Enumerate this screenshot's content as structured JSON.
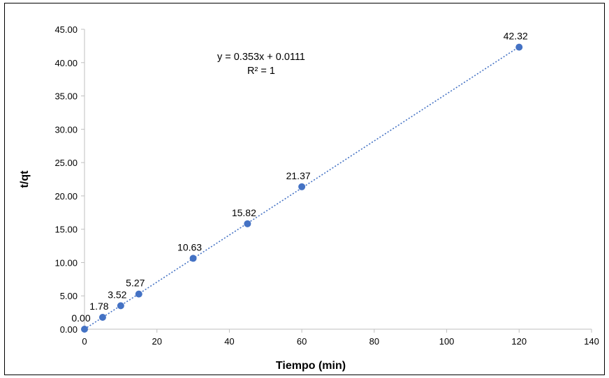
{
  "chart_data": {
    "type": "scatter",
    "title": "",
    "xlabel": "Tiempo (min)",
    "ylabel": "t/qt",
    "xlim": [
      0,
      140
    ],
    "ylim": [
      0,
      45
    ],
    "x_ticks": [
      0,
      20,
      40,
      60,
      80,
      100,
      120,
      140
    ],
    "y_ticks": [
      "0.00",
      "5.00",
      "10.00",
      "15.00",
      "20.00",
      "25.00",
      "30.00",
      "35.00",
      "40.00",
      "45.00"
    ],
    "grid": false,
    "legend": "none",
    "series": [
      {
        "x": [
          0,
          5,
          10,
          15,
          30,
          45,
          60,
          120
        ],
        "y": [
          0.0,
          1.78,
          3.52,
          5.27,
          10.63,
          15.82,
          21.37,
          42.32
        ],
        "labels": [
          "0.00",
          "1.78",
          "3.52",
          "5.27",
          "10.63",
          "15.82",
          "21.37",
          "42.32"
        ],
        "color": "#4472c4"
      }
    ],
    "trendline": {
      "type": "linear",
      "style": "dotted",
      "color": "#4472c4",
      "slope": 0.353,
      "intercept": 0.0111,
      "equation": "y = 0.353x + 0.0111",
      "r_squared": "R² = 1"
    }
  }
}
